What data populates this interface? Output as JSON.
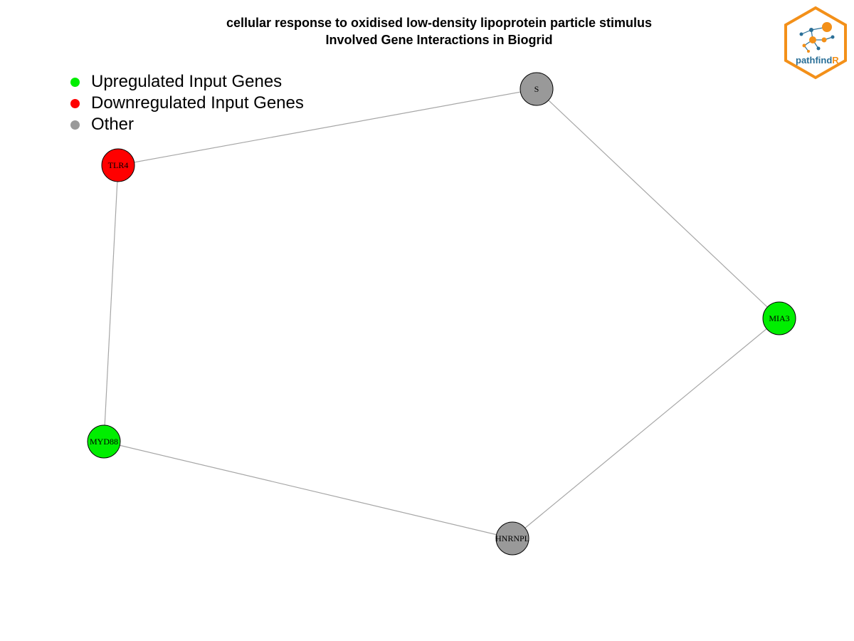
{
  "title": {
    "line1": "cellular response to oxidised low-density lipoprotein particle stimulus",
    "line2": "Involved Gene Interactions in Biogrid"
  },
  "legend": [
    {
      "label": "Upregulated Input Genes",
      "color": "#00ee00"
    },
    {
      "label": "Downregulated Input Genes",
      "color": "#ff0000"
    },
    {
      "label": "Other",
      "color": "#999999"
    }
  ],
  "colors": {
    "up": "#00ee00",
    "down": "#ff0000",
    "other": "#999999",
    "edge": "#a6a6a6"
  },
  "graph": {
    "nodes": [
      {
        "id": "S",
        "label": "S",
        "status": "other"
      },
      {
        "id": "TLR4",
        "label": "TLR4",
        "status": "down"
      },
      {
        "id": "MIA3",
        "label": "MIA3",
        "status": "up"
      },
      {
        "id": "MYD88",
        "label": "MYD88",
        "status": "up"
      },
      {
        "id": "HNRNPL",
        "label": "HNRNPL",
        "status": "other"
      }
    ],
    "edges": [
      {
        "source": "S",
        "target": "TLR4"
      },
      {
        "source": "S",
        "target": "MIA3"
      },
      {
        "source": "TLR4",
        "target": "MYD88"
      },
      {
        "source": "MYD88",
        "target": "HNRNPL"
      },
      {
        "source": "MIA3",
        "target": "HNRNPL"
      }
    ]
  },
  "logo": {
    "text_main": "pathfind",
    "text_accent": "R",
    "border_color": "#f39019",
    "text_color": "#2a6f97"
  }
}
